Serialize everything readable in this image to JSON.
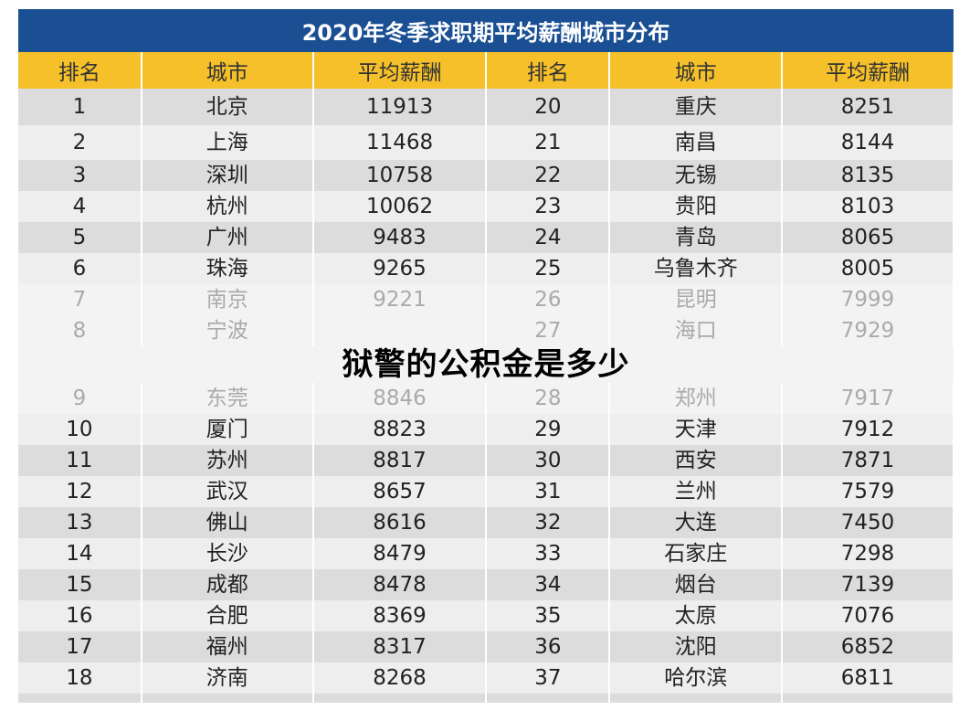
{
  "title": "2020年冬季求职期平均薪酬城市分布",
  "headers": [
    "排名",
    "城市",
    "平均薪酬",
    "排名",
    "城市",
    "平均薪酬"
  ],
  "rows": [
    [
      "1",
      "北京",
      "11913",
      "20",
      "重庆",
      "8251"
    ],
    [
      "2",
      "上海",
      "11468",
      "21",
      "南昌",
      "8144"
    ],
    [
      "3",
      "深圳",
      "10758",
      "22",
      "无锡",
      "8135"
    ],
    [
      "4",
      "杭州",
      "10062",
      "23",
      "贵阳",
      "8103"
    ],
    [
      "5",
      "广州",
      "9483",
      "24",
      "青岛",
      "8065"
    ],
    [
      "6",
      "珠海",
      "9265",
      "25",
      "乌鲁木齐",
      "8005"
    ],
    [
      "7",
      "南京",
      "9221",
      "26",
      "昆明",
      "7999"
    ],
    [
      "8",
      "宁波",
      "",
      "27",
      "海口",
      "7929"
    ],
    [
      "9",
      "东莞",
      "8846",
      "28",
      "郑州",
      "7917"
    ],
    [
      "10",
      "厦门",
      "8823",
      "29",
      "天津",
      "7912"
    ],
    [
      "11",
      "苏州",
      "8817",
      "30",
      "西安",
      "7871"
    ],
    [
      "12",
      "武汉",
      "8657",
      "31",
      "兰州",
      "7579"
    ],
    [
      "13",
      "佛山",
      "8616",
      "32",
      "大连",
      "7450"
    ],
    [
      "14",
      "长沙",
      "8479",
      "33",
      "石家庄",
      "7298"
    ],
    [
      "15",
      "成都",
      "8478",
      "34",
      "烟台",
      "7139"
    ],
    [
      "16",
      "合肥",
      "8369",
      "35",
      "太原",
      "7076"
    ],
    [
      "17",
      "福州",
      "8317",
      "36",
      "沈阳",
      "6852"
    ],
    [
      "18",
      "济南",
      "8268",
      "37",
      "哈尔滨",
      "6811"
    ]
  ],
  "overlay_text": "狱警的公积金是多少",
  "colors": {
    "title_bg": "#1a4f93",
    "header_bg": "#f5c02a"
  }
}
